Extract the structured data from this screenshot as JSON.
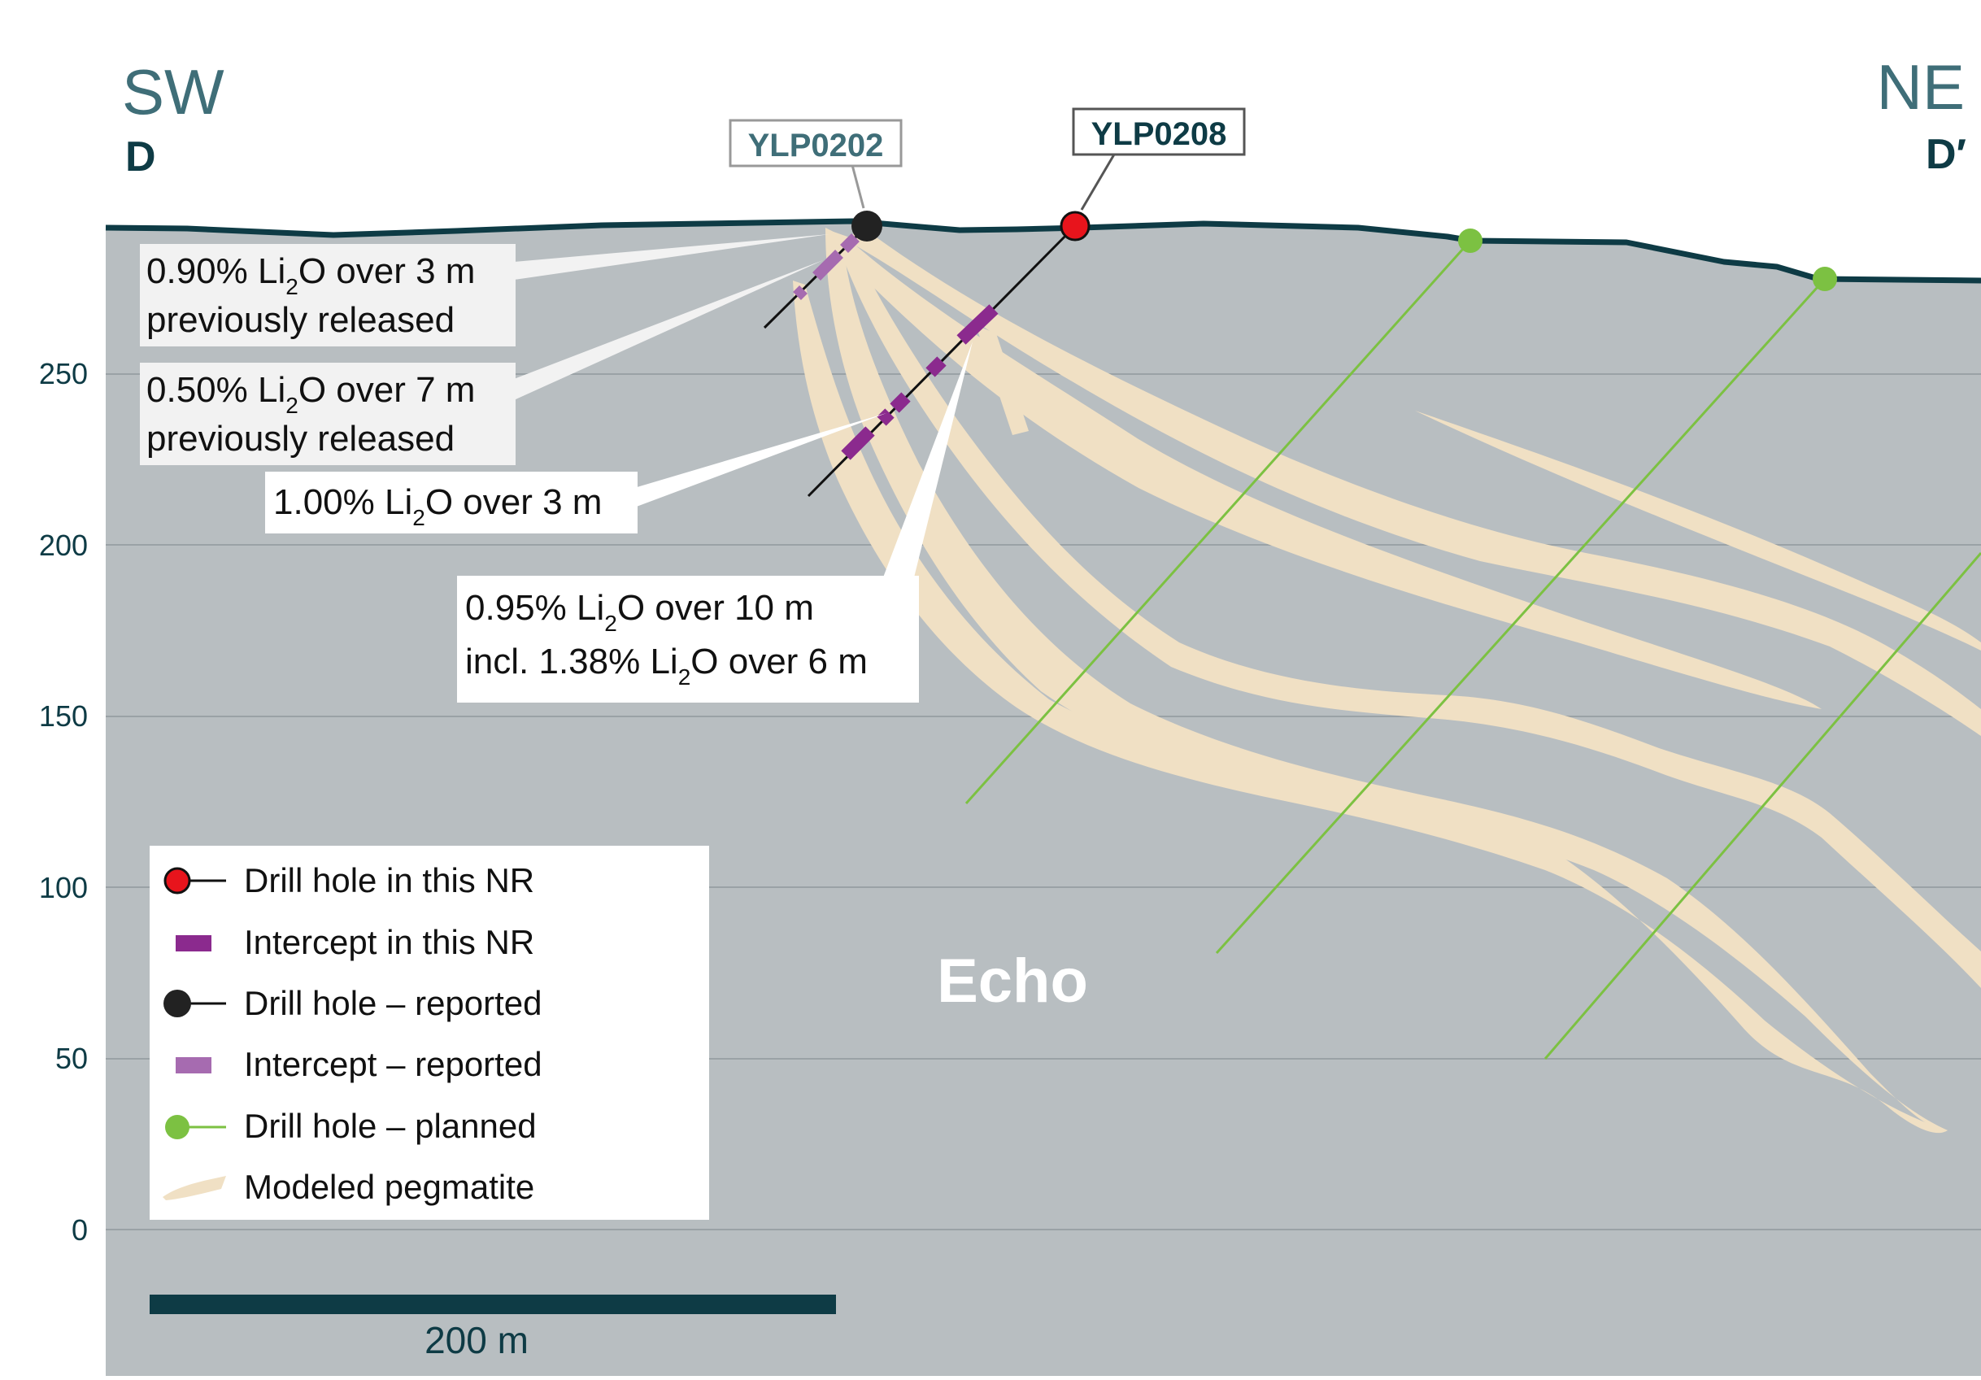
{
  "section": {
    "start_direction": "SW",
    "start_label": "D",
    "end_direction": "NE",
    "end_label": "D′",
    "zone_label": "Echo"
  },
  "y_axis": {
    "ticks": [
      "250",
      "200",
      "150",
      "100",
      "50",
      "0"
    ]
  },
  "scale_bar": {
    "label": "200 m"
  },
  "drill_holes": [
    {
      "id": "YLP0202",
      "status": "reported"
    },
    {
      "id": "YLP0208",
      "status": "this NR"
    }
  ],
  "callouts": [
    {
      "line1": "0.90% Li",
      "sub1": "2",
      "rest1": "O over 3 m",
      "line2": "previously released"
    },
    {
      "line1": "0.50% Li",
      "sub1": "2",
      "rest1": "O over 7 m",
      "line2": "previously released"
    },
    {
      "line1": "1.00% Li",
      "sub1": "2",
      "rest1": "O over 3 m",
      "line2": ""
    },
    {
      "line1": "0.95% Li",
      "sub1": "2",
      "rest1": "O over 10 m",
      "line2a": "incl. 1.38% Li",
      "sub2": "2",
      "rest2": "O over 6 m"
    }
  ],
  "legend": {
    "items": [
      {
        "label": "Drill hole in this NR"
      },
      {
        "label": "Intercept in this NR"
      },
      {
        "label": "Drill hole – reported"
      },
      {
        "label": "Intercept – reported"
      },
      {
        "label": "Drill hole – planned"
      },
      {
        "label": "Modeled pegmatite"
      }
    ]
  },
  "colors": {
    "ground": "#b8bec1",
    "surface_line": "#0e3b45",
    "gridline": "#9aa2a6",
    "pegmatite": "#f0e0c4",
    "intercept_nr": "#8b2a8e",
    "intercept_reported": "#a66bb0",
    "drill_nr": "#e8141c",
    "drill_reported": "#222222",
    "drill_planned": "#7cc142",
    "header_text": "#3f6e78",
    "dark_text": "#0e3b45",
    "axis_text": "#0e3b45"
  }
}
